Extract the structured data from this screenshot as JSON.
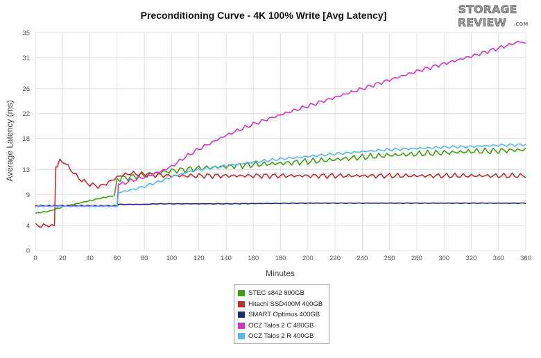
{
  "logo": {
    "line1": "STORAGE",
    "line2": "REVIEW",
    "suffix": ".COM"
  },
  "chart_data": {
    "type": "line",
    "title": "Preconditioning Curve - 4K 100% Write [Avg Latency]",
    "xlabel": "Minutes",
    "ylabel": "Average Latency (ms)",
    "xlim": [
      0,
      360
    ],
    "ylim": [
      0,
      35
    ],
    "x_ticks": [
      0,
      20,
      40,
      60,
      80,
      100,
      120,
      140,
      160,
      180,
      200,
      220,
      240,
      260,
      280,
      300,
      320,
      340,
      360
    ],
    "y_ticks": [
      0,
      4,
      9,
      13,
      18,
      22,
      26,
      31,
      35
    ],
    "grid": true,
    "legend_position": "bottom",
    "series": [
      {
        "name": "STEC s842 800GB",
        "color": "#3f9f12",
        "points": [
          [
            0,
            6
          ],
          [
            10,
            6.3
          ],
          [
            20,
            7
          ],
          [
            30,
            7.5
          ],
          [
            40,
            8
          ],
          [
            50,
            8.5
          ],
          [
            58,
            8.8
          ],
          [
            60,
            11.5
          ],
          [
            70,
            11.8
          ],
          [
            80,
            12.2
          ],
          [
            90,
            12.5
          ],
          [
            100,
            12.8
          ],
          [
            110,
            13
          ],
          [
            120,
            13.2
          ],
          [
            140,
            13.5
          ],
          [
            160,
            13.8
          ],
          [
            180,
            14
          ],
          [
            200,
            14.3
          ],
          [
            220,
            14.6
          ],
          [
            240,
            15
          ],
          [
            260,
            15.3
          ],
          [
            280,
            15.5
          ],
          [
            300,
            15.7
          ],
          [
            320,
            15.9
          ],
          [
            340,
            16
          ],
          [
            360,
            16.2
          ]
        ]
      },
      {
        "name": "Hitachi SSD400M 400GB",
        "color": "#c62a2a",
        "points": [
          [
            0,
            4
          ],
          [
            14,
            4
          ],
          [
            15,
            13
          ],
          [
            18,
            14.5
          ],
          [
            22,
            14
          ],
          [
            26,
            13
          ],
          [
            30,
            12
          ],
          [
            36,
            11
          ],
          [
            42,
            10.5
          ],
          [
            48,
            10.3
          ],
          [
            54,
            11
          ],
          [
            58,
            11.5
          ],
          [
            62,
            12
          ],
          [
            70,
            12.4
          ],
          [
            80,
            12.2
          ],
          [
            100,
            12
          ],
          [
            120,
            12
          ],
          [
            140,
            12
          ],
          [
            160,
            12
          ],
          [
            180,
            12
          ],
          [
            200,
            12
          ],
          [
            220,
            12
          ],
          [
            240,
            12
          ],
          [
            260,
            12
          ],
          [
            280,
            12
          ],
          [
            300,
            12
          ],
          [
            320,
            12
          ],
          [
            340,
            12
          ],
          [
            360,
            12
          ]
        ]
      },
      {
        "name": "SMART Optimus 400GB",
        "color": "#1a2a7c",
        "points": [
          [
            0,
            7.2
          ],
          [
            60,
            7.2
          ],
          [
            61,
            7.4
          ],
          [
            80,
            7.4
          ],
          [
            90,
            7.5
          ],
          [
            100,
            7.5
          ],
          [
            140,
            7.5
          ],
          [
            200,
            7.6
          ],
          [
            260,
            7.6
          ],
          [
            300,
            7.6
          ],
          [
            360,
            7.6
          ]
        ]
      },
      {
        "name": "OCZ Talos 2 C 480GB",
        "color": "#d633c6",
        "points": [
          [
            0,
            7.1
          ],
          [
            60,
            7.1
          ],
          [
            61,
            10.5
          ],
          [
            70,
            11.2
          ],
          [
            80,
            11.8
          ],
          [
            90,
            12.5
          ],
          [
            100,
            13.5
          ],
          [
            110,
            15
          ],
          [
            120,
            16.3
          ],
          [
            140,
            18.5
          ],
          [
            160,
            20.3
          ],
          [
            180,
            21.8
          ],
          [
            200,
            23.2
          ],
          [
            220,
            24.6
          ],
          [
            240,
            26
          ],
          [
            260,
            27.4
          ],
          [
            280,
            28.8
          ],
          [
            300,
            30
          ],
          [
            320,
            31.2
          ],
          [
            340,
            32.5
          ],
          [
            356,
            33.6
          ],
          [
            360,
            33.2
          ]
        ]
      },
      {
        "name": "OCZ Talos 2 R 400GB",
        "color": "#54b8ec",
        "points": [
          [
            0,
            7.1
          ],
          [
            60,
            7.1
          ],
          [
            61,
            9.3
          ],
          [
            70,
            9.7
          ],
          [
            80,
            10.3
          ],
          [
            90,
            11
          ],
          [
            100,
            11.8
          ],
          [
            110,
            12.5
          ],
          [
            120,
            13
          ],
          [
            140,
            13.6
          ],
          [
            160,
            14.2
          ],
          [
            180,
            14.7
          ],
          [
            200,
            15.1
          ],
          [
            220,
            15.5
          ],
          [
            240,
            15.9
          ],
          [
            260,
            16.2
          ],
          [
            280,
            16.4
          ],
          [
            300,
            16.6
          ],
          [
            320,
            16.7
          ],
          [
            340,
            16.9
          ],
          [
            360,
            17
          ]
        ]
      }
    ]
  }
}
